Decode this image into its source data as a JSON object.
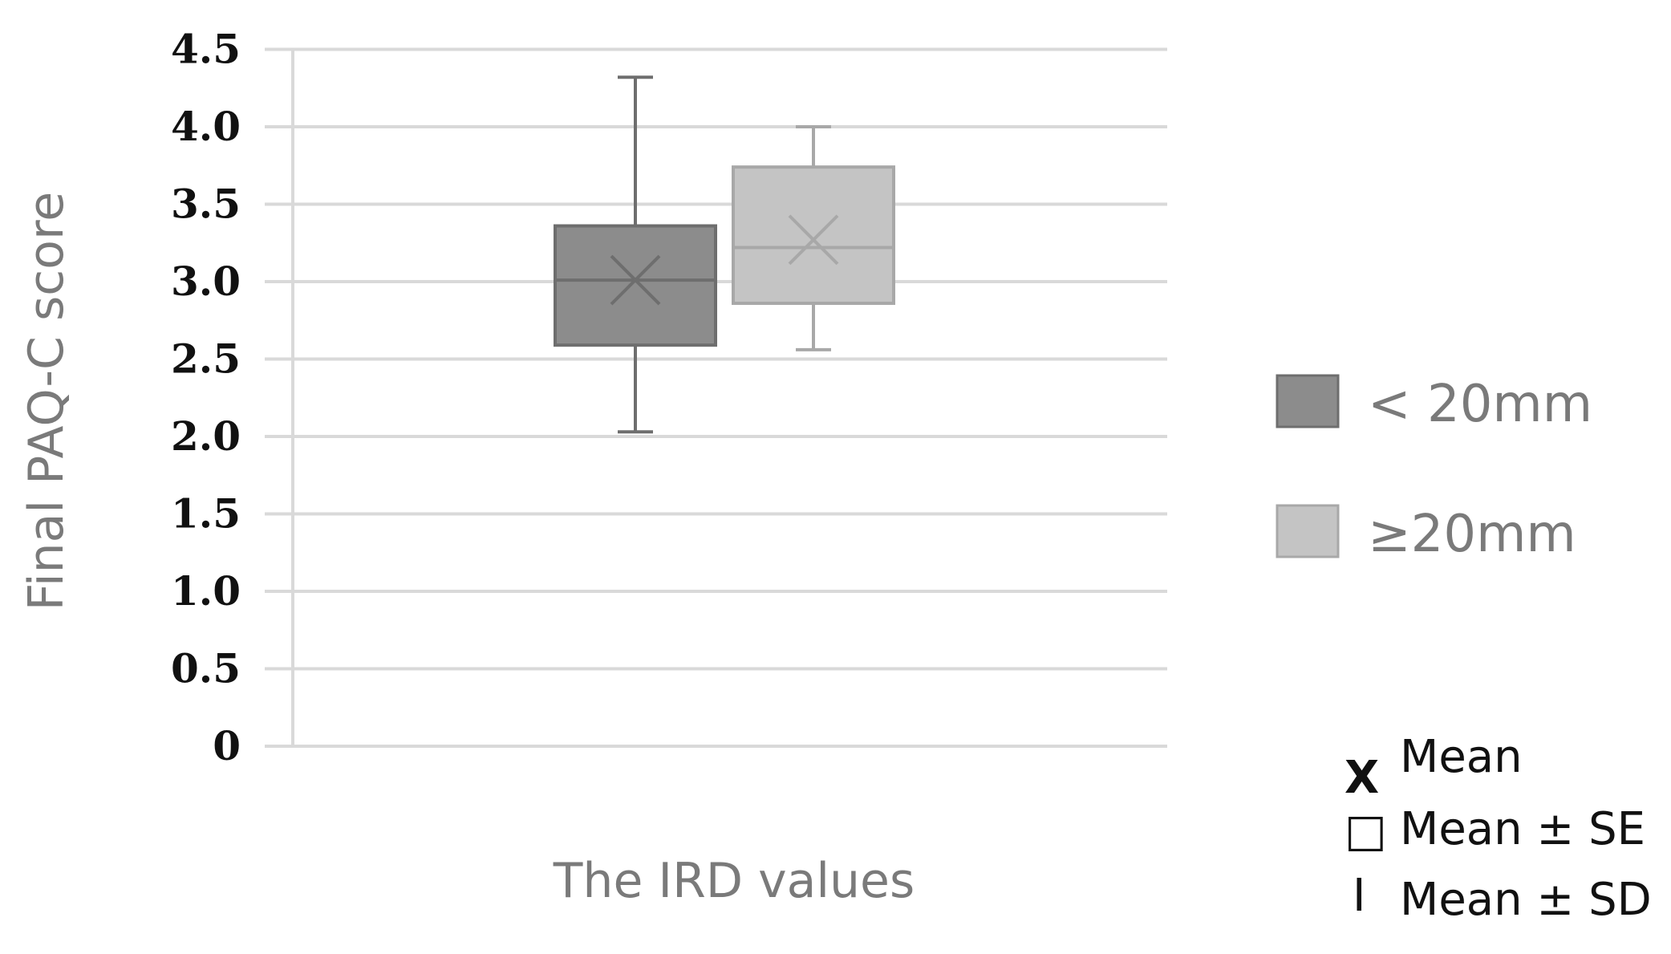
{
  "chart_data": {
    "type": "box",
    "ylabel": "Final PAQ-C score",
    "xlabel": "The IRD values",
    "ylim": [
      0,
      4.5
    ],
    "yticks": [
      "0",
      "0.5",
      "1.0",
      "1.5",
      "2.0",
      "2.5",
      "3.0",
      "3.5",
      "4.0",
      "4.5"
    ],
    "grid": true,
    "legend_position": "right",
    "series": [
      {
        "name": "< 20mm",
        "color": "#8c8c8c",
        "whisker_low": 2.03,
        "box_low": 2.59,
        "center": 3.01,
        "box_high": 3.36,
        "whisker_high": 4.32,
        "mean": 3.01
      },
      {
        "name": "≥20mm",
        "color": "#c4c4c4",
        "whisker_low": 2.56,
        "box_low": 2.86,
        "center": 3.22,
        "box_high": 3.74,
        "whisker_high": 4.0,
        "mean": 3.27
      }
    ],
    "key": [
      {
        "symbol": "X",
        "label": "Mean"
      },
      {
        "symbol": "□",
        "label": "Mean ± SE"
      },
      {
        "symbol": "I",
        "label": "Mean ± SD"
      }
    ]
  }
}
